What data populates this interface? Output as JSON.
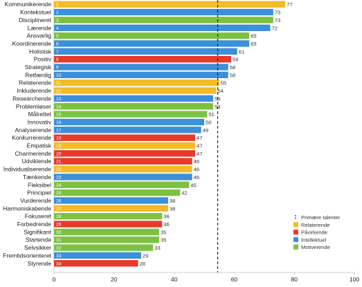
{
  "chart_data": {
    "type": "bar",
    "orientation": "horizontal",
    "categories": [
      "Kommunikerende",
      "Kontekstuel",
      "Disciplineret",
      "Lærende",
      "Ansvarlig",
      "Koordinerende",
      "Holistisk",
      "Positiv",
      "Strategisk",
      "Retfærdig",
      "Relaterende",
      "Inkluderende",
      "Researchende",
      "Problemløser",
      "Målrettet",
      "Innovativ",
      "Analyserende",
      "Konkurrerende",
      "Empatisk",
      "Charmerende",
      "Udviklende",
      "Individualiserende",
      "Tænkende",
      "Fleksibel",
      "Principiel",
      "Vurderende",
      "Harmoniskabende",
      "Fokuseret",
      "Forbedrende",
      "Signifikant",
      "Startende",
      "Selvsikker",
      "Fremtidsorienteret",
      "Styrende"
    ],
    "ranks": [
      "1",
      "2",
      "3",
      "4",
      "5",
      "6",
      "7",
      "8",
      "9",
      "10",
      "11",
      "12",
      "13",
      "14",
      "15",
      "16",
      "17",
      "18",
      "19",
      "20",
      "21",
      "22",
      "23",
      "24",
      "25",
      "26",
      "27",
      "28",
      "29",
      "30",
      "31",
      "32",
      "33",
      "34"
    ],
    "values": [
      77,
      73,
      73,
      72,
      65,
      65,
      61,
      59,
      58,
      58,
      55,
      54,
      53,
      53,
      51,
      50,
      49,
      47,
      47,
      47,
      46,
      46,
      46,
      45,
      42,
      38,
      38,
      36,
      36,
      35,
      35,
      33,
      29,
      28
    ],
    "groups": [
      "Relaterende",
      "Intellektuel",
      "Motiverende",
      "Intellektuel",
      "Motiverende",
      "Intellektuel",
      "Intellektuel",
      "Påvirkende",
      "Intellektuel",
      "Intellektuel",
      "Relaterende",
      "Relaterende",
      "Intellektuel",
      "Motiverende",
      "Motiverende",
      "Intellektuel",
      "Intellektuel",
      "Påvirkende",
      "Relaterende",
      "Påvirkende",
      "Påvirkende",
      "Relaterende",
      "Intellektuel",
      "Motiverende",
      "Motiverende",
      "Intellektuel",
      "Relaterende",
      "Motiverende",
      "Påvirkende",
      "Motiverende",
      "Motiverende",
      "Motiverende",
      "Intellektuel",
      "Påvirkende"
    ],
    "group_colors": {
      "Relaterende": "#f4bb27",
      "Påvirkende": "#e63a2a",
      "Intellektuel": "#3c8fd8",
      "Motiverende": "#7cc242"
    },
    "reference_line": {
      "value": 54.5,
      "style": "dashed",
      "label": "Primære talenter"
    },
    "xlim": [
      0,
      100
    ],
    "xticks": [
      "0",
      "20",
      "40",
      "60",
      "80",
      "100"
    ],
    "grid": false,
    "legend": {
      "placement": "bottom-right",
      "entries": [
        {
          "label": "Primære talenter",
          "kind": "dashed-line"
        },
        {
          "label": "Relaterende",
          "kind": "swatch",
          "group": "Relaterende"
        },
        {
          "label": "Påvirkende",
          "kind": "swatch",
          "group": "Påvirkende"
        },
        {
          "label": "Intellektuel",
          "kind": "swatch",
          "group": "Intellektuel"
        },
        {
          "label": "Motiverende",
          "kind": "swatch",
          "group": "Motiverende"
        }
      ]
    }
  }
}
